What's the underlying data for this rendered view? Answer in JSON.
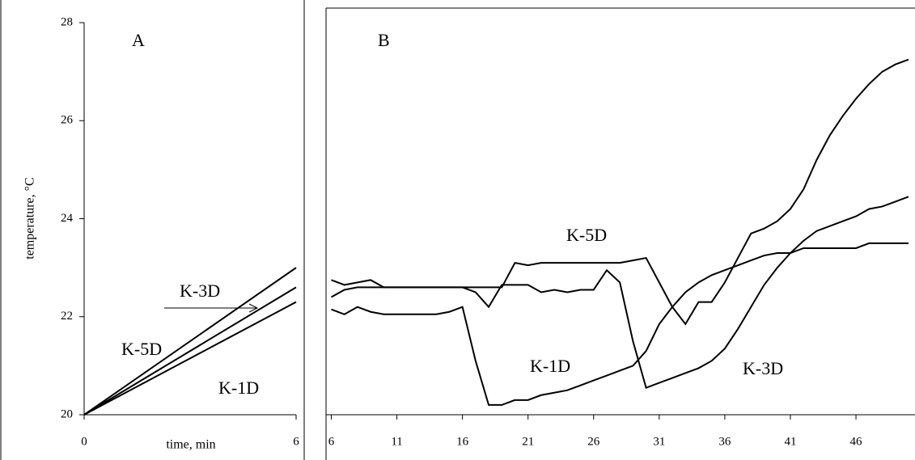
{
  "chart_data": [
    {
      "type": "line",
      "title": "A",
      "x_label": "time, min",
      "y_label": "temperature, °C",
      "x": [
        0,
        6
      ],
      "xlim": [
        0,
        6
      ],
      "xticks": [
        0,
        6
      ],
      "ylim": [
        20,
        28
      ],
      "yticks": [
        20,
        22,
        24,
        26,
        28
      ],
      "color": "#000000",
      "series": [
        {
          "values": [
            20,
            23
          ]
        },
        {
          "values": [
            20,
            22.6
          ]
        },
        {
          "values": [
            20,
            22.3
          ]
        }
      ],
      "annotations": [
        "K-3D",
        "K-5D",
        "K-1D"
      ]
    },
    {
      "type": "line",
      "title": "B",
      "x": [
        6,
        7,
        8,
        9,
        10,
        11,
        12,
        13,
        14,
        15,
        16,
        17,
        18,
        19,
        20,
        21,
        22,
        23,
        24,
        25,
        26,
        27,
        28,
        29,
        30,
        31,
        32,
        33,
        34,
        35,
        36,
        37,
        38,
        39,
        40,
        41,
        42,
        43,
        44,
        45,
        46,
        47,
        48,
        49,
        50
      ],
      "xlim": [
        5.6,
        50.5
      ],
      "xticks": [
        6,
        11,
        16,
        21,
        26,
        31,
        36,
        41,
        46
      ],
      "ylim": [
        20,
        28.3
      ],
      "color": "#000000",
      "series": [
        {
          "values": [
            22.4,
            22.55,
            22.6,
            22.6,
            22.6,
            22.6,
            22.6,
            22.6,
            22.6,
            22.6,
            22.6,
            22.6,
            22.6,
            22.6,
            23.1,
            23.05,
            23.1,
            23.1,
            23.1,
            23.1,
            23.1,
            23.1,
            23.1,
            23.15,
            23.2,
            22.7,
            22.2,
            21.85,
            22.3,
            22.3,
            22.7,
            23.2,
            23.7,
            23.8,
            23.95,
            24.2,
            24.6,
            25.2,
            25.7,
            26.1,
            26.45,
            26.75,
            27.0,
            27.15,
            27.25
          ]
        },
        {
          "values": [
            22.15,
            22.05,
            22.2,
            22.1,
            22.05,
            22.05,
            22.05,
            22.05,
            22.05,
            22.1,
            22.2,
            21.1,
            20.2,
            20.2,
            20.3,
            20.3,
            20.4,
            20.45,
            20.5,
            20.6,
            20.7,
            20.8,
            20.9,
            21.0,
            21.3,
            21.85,
            22.2,
            22.5,
            22.7,
            22.85,
            22.95,
            23.05,
            23.15,
            23.25,
            23.3,
            23.3,
            23.4,
            23.4,
            23.4,
            23.4,
            23.4,
            23.5,
            23.5,
            23.5,
            23.5
          ]
        },
        {
          "values": [
            22.75,
            22.65,
            22.7,
            22.75,
            22.6,
            22.6,
            22.6,
            22.6,
            22.6,
            22.6,
            22.6,
            22.5,
            22.2,
            22.65,
            22.65,
            22.65,
            22.5,
            22.55,
            22.5,
            22.55,
            22.55,
            22.95,
            22.7,
            21.5,
            20.55,
            20.65,
            20.75,
            20.85,
            20.95,
            21.1,
            21.35,
            21.75,
            22.2,
            22.65,
            23.0,
            23.3,
            23.55,
            23.75,
            23.85,
            23.95,
            24.05,
            24.2,
            24.25,
            24.35,
            24.45
          ]
        }
      ],
      "annotations": [
        "K-5D",
        "K-1D",
        "K-3D"
      ]
    }
  ]
}
